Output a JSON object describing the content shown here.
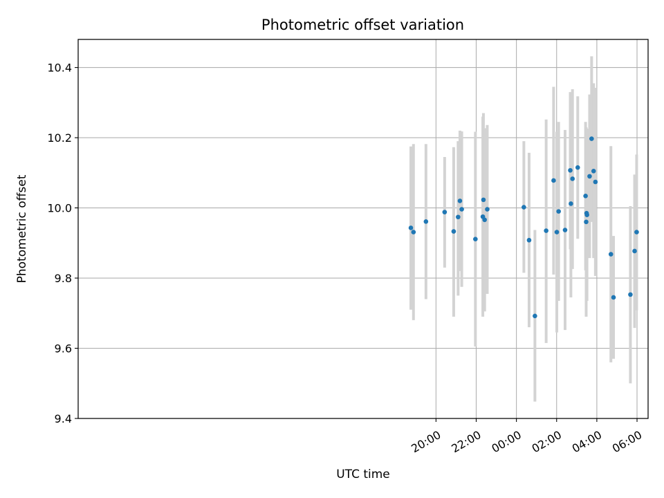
{
  "chart_data": {
    "type": "scatter",
    "title": "Photometric offset variation",
    "xlabel": "UTC time",
    "ylabel": "Photometric offset",
    "x_unit": "hours",
    "xlim": [
      -21.8,
      6.55
    ],
    "ylim": [
      9.4,
      10.48
    ],
    "x_ticks": [
      {
        "value": -4,
        "label": "20:00"
      },
      {
        "value": -2,
        "label": "22:00"
      },
      {
        "value": 0,
        "label": "00:00"
      },
      {
        "value": 2,
        "label": "02:00"
      },
      {
        "value": 4,
        "label": "04:00"
      },
      {
        "value": 6,
        "label": "06:00"
      }
    ],
    "y_ticks": [
      "9.4",
      "9.6",
      "9.8",
      "10.0",
      "10.2",
      "10.4"
    ],
    "grid": true,
    "colors": {
      "point": "#1f77b4",
      "errorbar": "#d3d3d3",
      "grid": "#b0b0b0"
    },
    "points": [
      {
        "x": -5.25,
        "y": 9.943,
        "lo": 9.71,
        "hi": 10.175
      },
      {
        "x": -5.12,
        "y": 9.931,
        "lo": 9.68,
        "hi": 10.182
      },
      {
        "x": -4.5,
        "y": 9.961,
        "lo": 9.74,
        "hi": 10.182
      },
      {
        "x": -3.57,
        "y": 9.988,
        "lo": 9.83,
        "hi": 10.145
      },
      {
        "x": -3.12,
        "y": 9.933,
        "lo": 9.69,
        "hi": 10.173
      },
      {
        "x": -2.9,
        "y": 9.974,
        "lo": 9.75,
        "hi": 10.19
      },
      {
        "x": -2.81,
        "y": 10.02,
        "lo": 9.82,
        "hi": 10.22
      },
      {
        "x": -2.72,
        "y": 9.996,
        "lo": 9.775,
        "hi": 10.218
      },
      {
        "x": -2.04,
        "y": 9.911,
        "lo": 9.605,
        "hi": 10.217
      },
      {
        "x": -1.67,
        "y": 9.975,
        "lo": 9.69,
        "hi": 10.26
      },
      {
        "x": -1.64,
        "y": 10.023,
        "lo": 9.775,
        "hi": 10.27
      },
      {
        "x": -1.58,
        "y": 9.966,
        "lo": 9.705,
        "hi": 10.227
      },
      {
        "x": -1.45,
        "y": 9.996,
        "lo": 9.755,
        "hi": 10.236
      },
      {
        "x": 0.37,
        "y": 10.002,
        "lo": 9.815,
        "hi": 10.19
      },
      {
        "x": 0.63,
        "y": 9.908,
        "lo": 9.66,
        "hi": 10.157
      },
      {
        "x": 0.92,
        "y": 9.692,
        "lo": 9.448,
        "hi": 9.937
      },
      {
        "x": 1.48,
        "y": 9.935,
        "lo": 9.615,
        "hi": 10.252
      },
      {
        "x": 1.85,
        "y": 10.078,
        "lo": 9.81,
        "hi": 10.345
      },
      {
        "x": 2.01,
        "y": 9.931,
        "lo": 9.645,
        "hi": 10.217
      },
      {
        "x": 2.1,
        "y": 9.99,
        "lo": 9.735,
        "hi": 10.245
      },
      {
        "x": 2.42,
        "y": 9.937,
        "lo": 9.652,
        "hi": 10.222
      },
      {
        "x": 2.68,
        "y": 10.107,
        "lo": 9.882,
        "hi": 10.33
      },
      {
        "x": 2.71,
        "y": 10.012,
        "lo": 9.745,
        "hi": 10.28
      },
      {
        "x": 2.79,
        "y": 10.083,
        "lo": 9.826,
        "hi": 10.338
      },
      {
        "x": 3.05,
        "y": 10.115,
        "lo": 9.912,
        "hi": 10.318
      },
      {
        "x": 3.44,
        "y": 10.034,
        "lo": 9.822,
        "hi": 10.245
      },
      {
        "x": 3.47,
        "y": 9.96,
        "lo": 9.69,
        "hi": 10.23
      },
      {
        "x": 3.49,
        "y": 9.985,
        "lo": 9.745,
        "hi": 10.226
      },
      {
        "x": 3.51,
        "y": 9.98,
        "lo": 9.735,
        "hi": 10.225
      },
      {
        "x": 3.64,
        "y": 10.09,
        "lo": 9.857,
        "hi": 10.323
      },
      {
        "x": 3.74,
        "y": 10.197,
        "lo": 9.96,
        "hi": 10.432
      },
      {
        "x": 3.84,
        "y": 10.105,
        "lo": 9.857,
        "hi": 10.355
      },
      {
        "x": 3.93,
        "y": 10.074,
        "lo": 9.806,
        "hi": 10.342
      },
      {
        "x": 4.7,
        "y": 9.868,
        "lo": 9.56,
        "hi": 10.176
      },
      {
        "x": 4.83,
        "y": 9.745,
        "lo": 9.57,
        "hi": 9.92
      },
      {
        "x": 5.67,
        "y": 9.753,
        "lo": 9.5,
        "hi": 10.005
      },
      {
        "x": 5.88,
        "y": 9.877,
        "lo": 9.658,
        "hi": 10.095
      },
      {
        "x": 5.98,
        "y": 9.931,
        "lo": 9.708,
        "hi": 10.152
      }
    ]
  }
}
